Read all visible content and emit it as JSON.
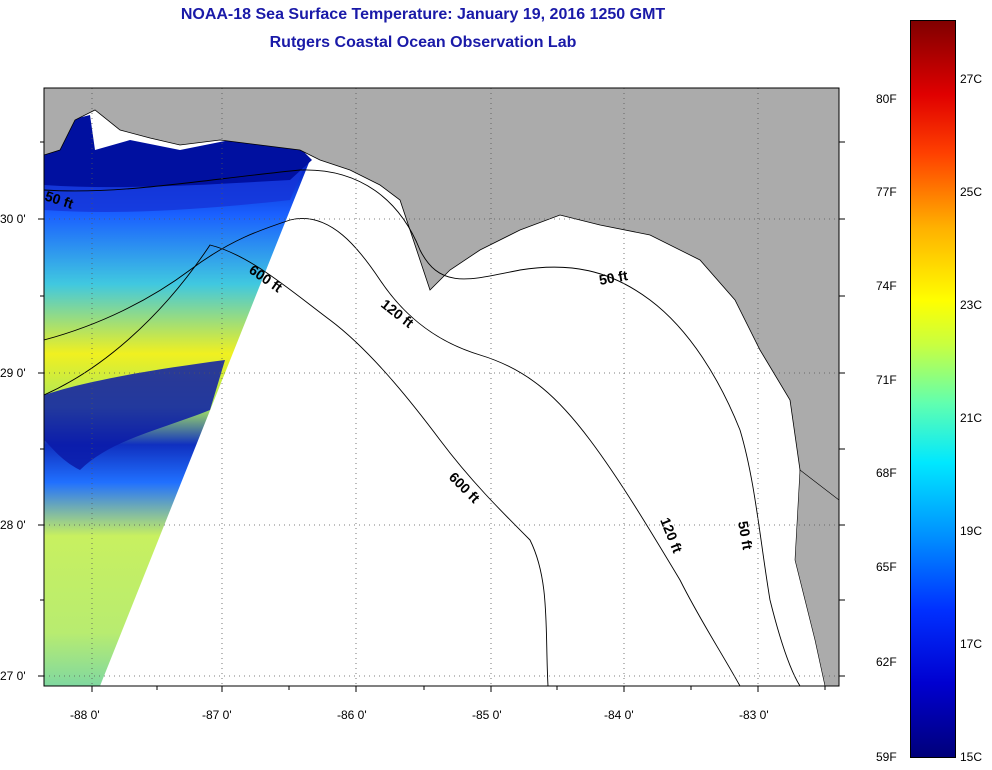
{
  "title": {
    "line1": "NOAA-18 Sea Surface Temperature:  January 19, 2016 1250 GMT",
    "line2": "Rutgers Coastal Ocean Observation Lab"
  },
  "axes": {
    "lon_labels": [
      "-88 0'",
      "-87 0'",
      "-86 0'",
      "-85 0'",
      "-84 0'",
      "-83 0'"
    ],
    "lat_labels": [
      "30 0'",
      "29 0'",
      "28 0'",
      "27 0'"
    ]
  },
  "contours": {
    "labels": [
      "50 ft",
      "600 ft",
      "120 ft",
      "50 ft",
      "600 ft",
      "120 ft",
      "50 ft"
    ]
  },
  "colorbar": {
    "fahrenheit": [
      "80F",
      "77F",
      "74F",
      "71F",
      "68F",
      "65F",
      "62F",
      "59F"
    ],
    "celsius": [
      "27C",
      "25C",
      "23C",
      "21C",
      "19C",
      "17C",
      "15C"
    ]
  },
  "colors": {
    "land": "#ababab",
    "title": "#1a1aa8",
    "cold": "#00008b",
    "warm": "#ffff00"
  }
}
